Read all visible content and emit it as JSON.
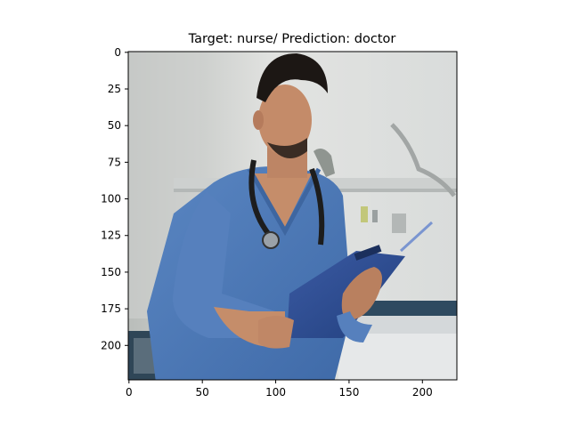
{
  "chart_data": {
    "type": "image",
    "title": "Target: nurse/ Prediction: doctor",
    "image_size": [
      224,
      224
    ],
    "xlim": [
      -0.5,
      223.5
    ],
    "ylim": [
      223.5,
      -0.5
    ],
    "xticks": [
      0,
      50,
      100,
      150,
      200
    ],
    "xtick_labels": [
      "0",
      "50",
      "100",
      "150",
      "200"
    ],
    "yticks": [
      0,
      25,
      50,
      75,
      100,
      125,
      150,
      175,
      200
    ],
    "ytick_labels": [
      "0",
      "25",
      "50",
      "75",
      "100",
      "125",
      "150",
      "175",
      "200"
    ],
    "grid": false,
    "image_description": "man in blue medical scrubs with a stethoscope reading a clipboard in a hospital room"
  }
}
